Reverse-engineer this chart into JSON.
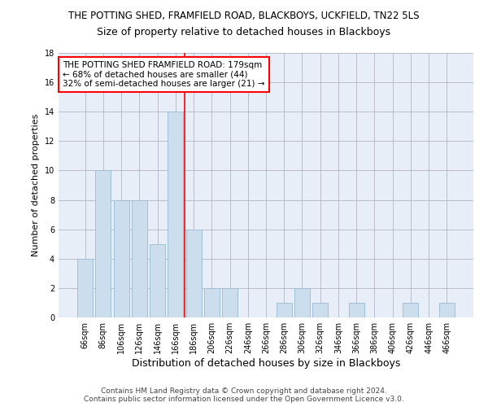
{
  "title": "THE POTTING SHED, FRAMFIELD ROAD, BLACKBOYS, UCKFIELD, TN22 5LS",
  "subtitle": "Size of property relative to detached houses in Blackboys",
  "xlabel": "Distribution of detached houses by size in Blackboys",
  "ylabel": "Number of detached properties",
  "bar_labels": [
    "66sqm",
    "86sqm",
    "106sqm",
    "126sqm",
    "146sqm",
    "166sqm",
    "186sqm",
    "206sqm",
    "226sqm",
    "246sqm",
    "266sqm",
    "286sqm",
    "306sqm",
    "326sqm",
    "346sqm",
    "366sqm",
    "386sqm",
    "406sqm",
    "426sqm",
    "446sqm",
    "466sqm"
  ],
  "bar_values": [
    4,
    10,
    8,
    8,
    5,
    14,
    6,
    2,
    2,
    0,
    0,
    1,
    2,
    1,
    0,
    1,
    0,
    0,
    1,
    0,
    1
  ],
  "bar_color": "#ccdded",
  "bar_edge_color": "#a0c0d8",
  "grid_color": "#bbbbcc",
  "background_color": "#e8eef8",
  "vline_color": "red",
  "vline_x_index": 5.5,
  "annotation_box_text": "THE POTTING SHED FRAMFIELD ROAD: 179sqm\n← 68% of detached houses are smaller (44)\n32% of semi-detached houses are larger (21) →",
  "annotation_box_color": "red",
  "ylim": [
    0,
    18
  ],
  "yticks": [
    0,
    2,
    4,
    6,
    8,
    10,
    12,
    14,
    16,
    18
  ],
  "footer_line1": "Contains HM Land Registry data © Crown copyright and database right 2024.",
  "footer_line2": "Contains public sector information licensed under the Open Government Licence v3.0.",
  "title_fontsize": 8.5,
  "subtitle_fontsize": 9,
  "xlabel_fontsize": 9,
  "ylabel_fontsize": 8,
  "tick_fontsize": 7,
  "footer_fontsize": 6.5,
  "annotation_fontsize": 7.5
}
